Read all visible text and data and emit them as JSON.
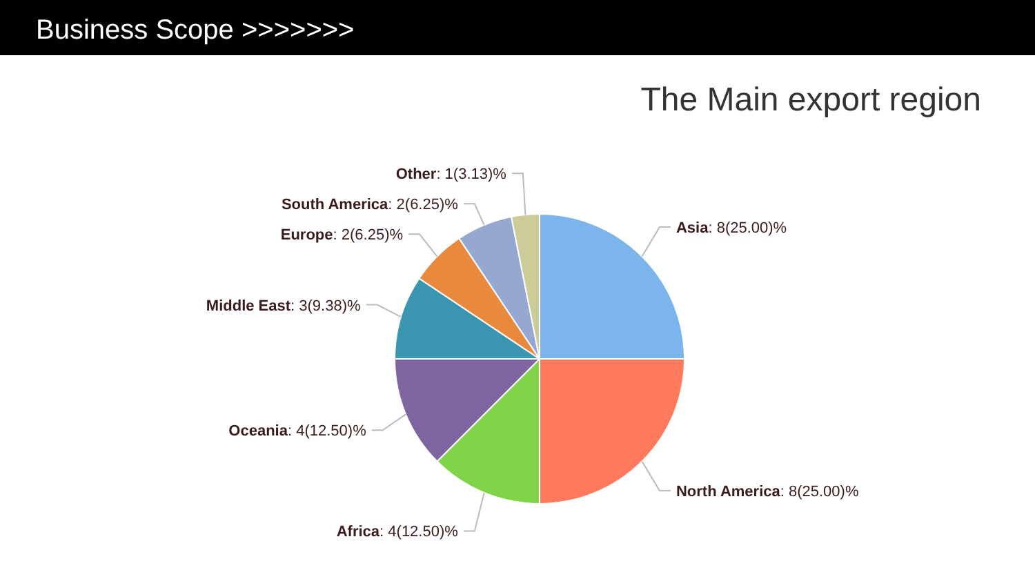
{
  "chart_data": {
    "type": "pie",
    "title": "The Main export region",
    "annotations": [
      "Business Scope >>>>>>>"
    ],
    "categories": [
      "Asia",
      "North America",
      "Africa",
      "Oceania",
      "Middle East",
      "Europe",
      "South America",
      "Other"
    ],
    "values": [
      8,
      8,
      4,
      4,
      3,
      2,
      2,
      1
    ],
    "value_labels": [
      ": 8(25.00)%",
      ": 8(25.00)%",
      ": 4(12.50)%",
      ": 4(12.50)%",
      ": 3(9.38)%",
      ": 2(6.25)%",
      ": 2(6.25)%",
      ": 1(3.13)%"
    ],
    "colors": [
      "#7cb5ec",
      "#ff7a5c",
      "#80d44a",
      "#8066a0",
      "#3a96b0",
      "#e8893e",
      "#96a8d0",
      "#cccc99"
    ]
  }
}
